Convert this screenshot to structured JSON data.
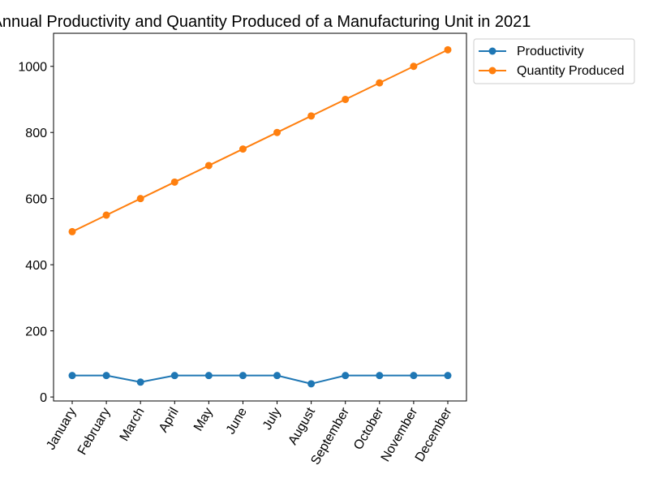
{
  "chart_data": {
    "type": "line",
    "title": "Annual Productivity and Quantity Produced of a Manufacturing Unit in 2021",
    "xlabel": "",
    "ylabel": "",
    "categories": [
      "January",
      "February",
      "March",
      "April",
      "May",
      "June",
      "July",
      "August",
      "September",
      "October",
      "November",
      "December"
    ],
    "series": [
      {
        "name": "Productivity",
        "color": "#1f77b4",
        "values": [
          65,
          65,
          45,
          65,
          65,
          65,
          65,
          40,
          65,
          65,
          65,
          65
        ]
      },
      {
        "name": "Quantity Produced",
        "color": "#ff7f0e",
        "values": [
          500,
          550,
          600,
          650,
          700,
          750,
          800,
          850,
          900,
          950,
          1000,
          1050
        ]
      }
    ],
    "ylim": [
      -12,
      1100
    ],
    "yticks": [
      0,
      200,
      400,
      600,
      800,
      1000
    ],
    "grid": false,
    "legend_position": "upper-right-outside"
  }
}
